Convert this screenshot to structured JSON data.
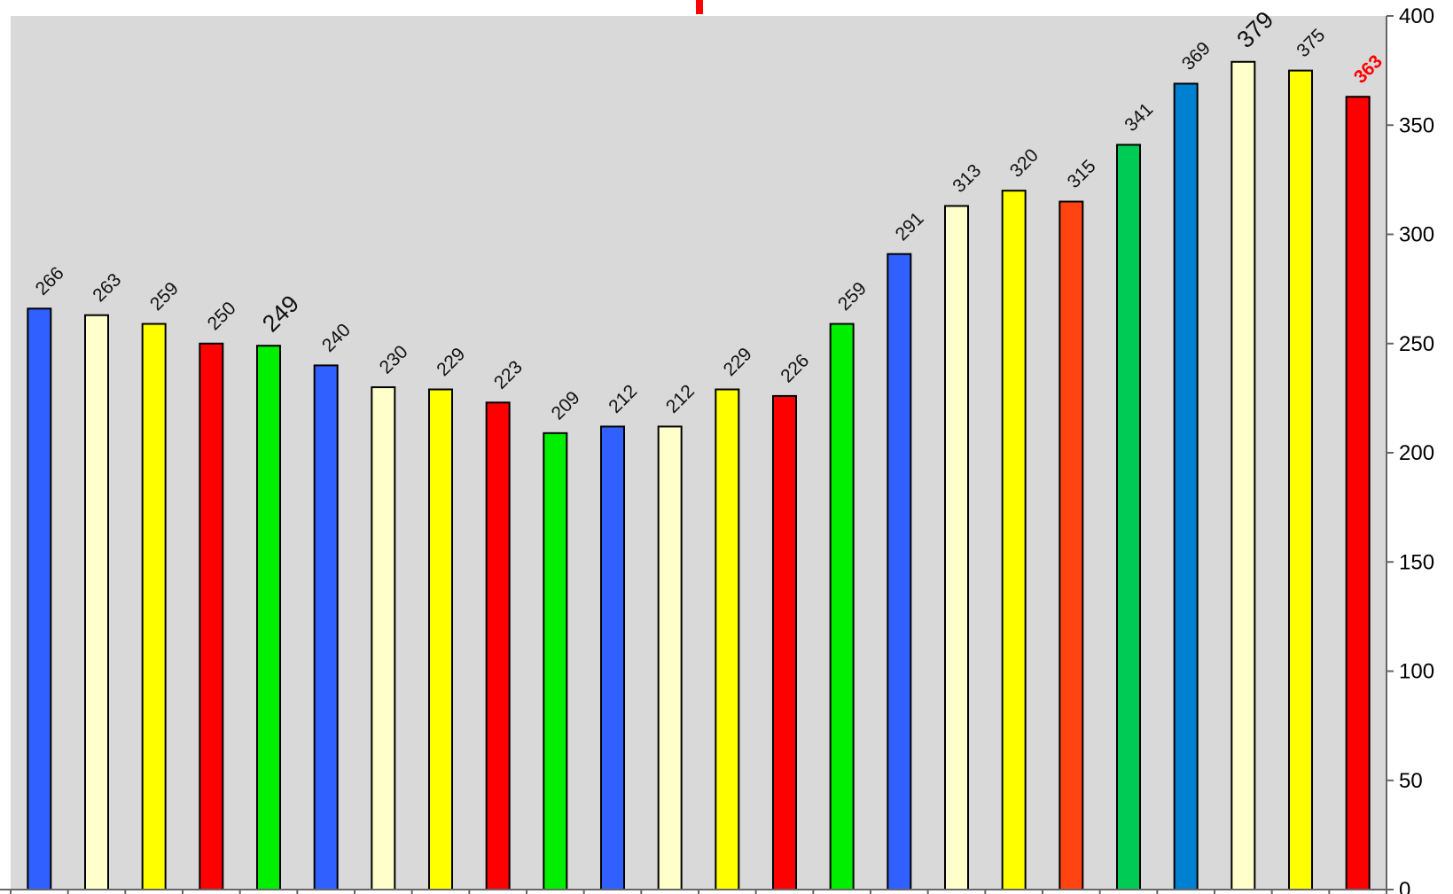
{
  "chart_data": {
    "type": "bar",
    "title": "",
    "xlabel": "",
    "ylabel": "",
    "ylim": [
      0,
      400
    ],
    "yticks": [
      0,
      50,
      100,
      150,
      200,
      250,
      300,
      350,
      400
    ],
    "y_axis_side": "right",
    "grid": false,
    "plot_background": "#d9d9d9",
    "values": [
      266,
      263,
      259,
      250,
      249,
      240,
      230,
      229,
      223,
      209,
      212,
      212,
      229,
      226,
      259,
      291,
      313,
      320,
      315,
      341,
      369,
      379,
      375,
      363
    ],
    "colors": [
      "#3060ff",
      "#ffffcc",
      "#ffff00",
      "#ff0000",
      "#00ee00",
      "#3060ff",
      "#ffffcc",
      "#ffff00",
      "#ff0000",
      "#00ee00",
      "#3060ff",
      "#ffffcc",
      "#ffff00",
      "#ff0000",
      "#00ee00",
      "#3060ff",
      "#ffffcc",
      "#ffff00",
      "#ff4411",
      "#00cc55",
      "#0080d0",
      "#ffffcc",
      "#ffff00",
      "#ff0000"
    ],
    "value_labels": [
      "266",
      "263",
      "259",
      "250",
      "249",
      "240",
      "230",
      "229",
      "223",
      "209",
      "212",
      "212",
      "229",
      "226",
      "259",
      "291",
      "313",
      "320",
      "315",
      "341",
      "369",
      "379",
      "375",
      "363"
    ],
    "emphasized_labels": [
      4,
      21
    ],
    "red_labels": [
      23
    ]
  },
  "colors": {
    "axis": "#666666",
    "top_marker": "#ff0000"
  }
}
